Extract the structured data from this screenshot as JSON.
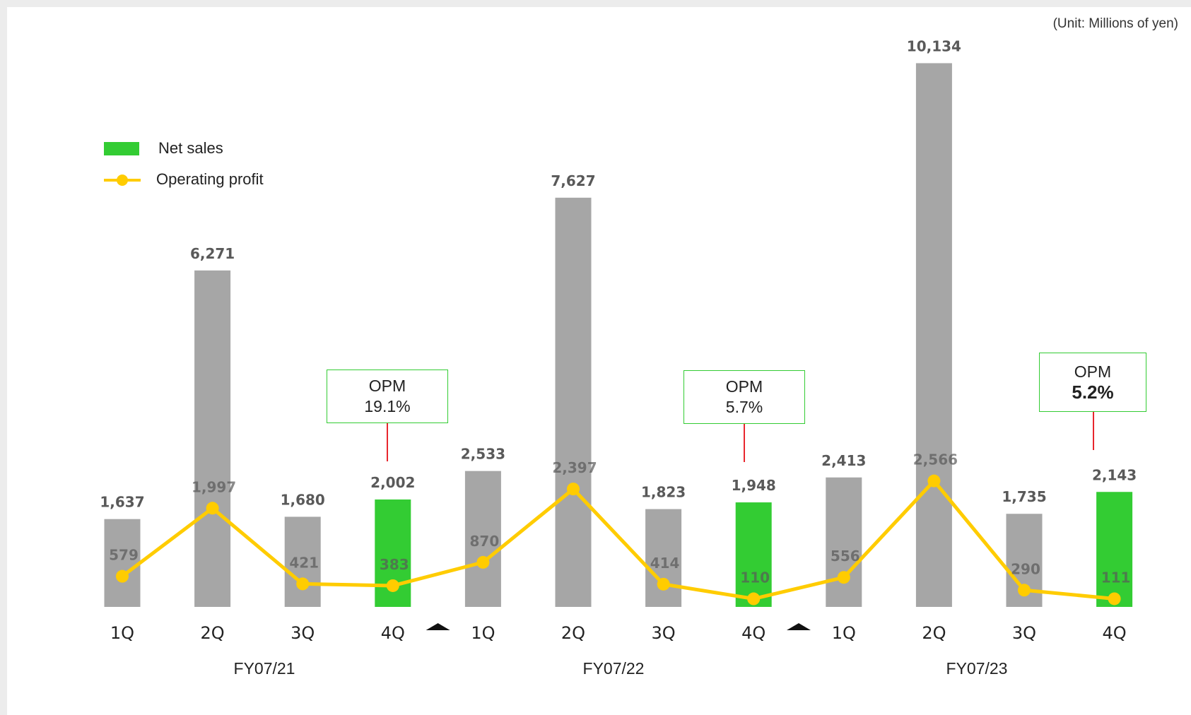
{
  "unit_note": "(Unit: Millions of yen)",
  "legend": {
    "net_sales": "Net sales",
    "operating_profit": "Operating profit"
  },
  "opm": [
    {
      "title": "OPM",
      "value": "19.1%"
    },
    {
      "title": "OPM",
      "value": "5.7%"
    },
    {
      "title": "OPM",
      "value": "5.2%"
    }
  ],
  "fiscal_years": [
    "FY07/21",
    "FY07/22",
    "FY07/23"
  ],
  "colors": {
    "bar_default": "#a6a6a6",
    "bar_highlight": "#33cc33",
    "line": "#ffcc00",
    "opm_border": "#33cc33",
    "opm_stem": "#e8262d",
    "label": "#595959"
  },
  "chart_data": {
    "type": "bar",
    "categories": [
      "1Q",
      "2Q",
      "3Q",
      "4Q",
      "1Q",
      "2Q",
      "3Q",
      "4Q",
      "1Q",
      "2Q",
      "3Q",
      "4Q"
    ],
    "groups": [
      "FY07/21",
      "FY07/21",
      "FY07/21",
      "FY07/21",
      "FY07/22",
      "FY07/22",
      "FY07/22",
      "FY07/22",
      "FY07/23",
      "FY07/23",
      "FY07/23",
      "FY07/23"
    ],
    "series": [
      {
        "name": "Net sales",
        "type": "bar",
        "values": [
          1637,
          6271,
          1680,
          2002,
          2533,
          7627,
          1823,
          1948,
          2413,
          10134,
          1735,
          2143
        ],
        "labels": [
          "1,637",
          "6,271",
          "1,680",
          "2,002",
          "2,533",
          "7,627",
          "1,823",
          "1,948",
          "2,413",
          "10,134",
          "1,735",
          "2,143"
        ],
        "highlighted": [
          false,
          false,
          false,
          true,
          false,
          false,
          false,
          true,
          false,
          false,
          false,
          true
        ]
      },
      {
        "name": "Operating profit",
        "type": "line",
        "values": [
          579,
          1997,
          421,
          383,
          870,
          2397,
          414,
          110,
          556,
          2566,
          290,
          111
        ],
        "labels": [
          "579",
          "1,997",
          "421",
          "383",
          "870",
          "2,397",
          "414",
          "110",
          "556",
          "2,566",
          "290",
          "111"
        ]
      }
    ],
    "ylim": [
      0,
      10500
    ],
    "grid": false,
    "legend_position": "top-left"
  }
}
